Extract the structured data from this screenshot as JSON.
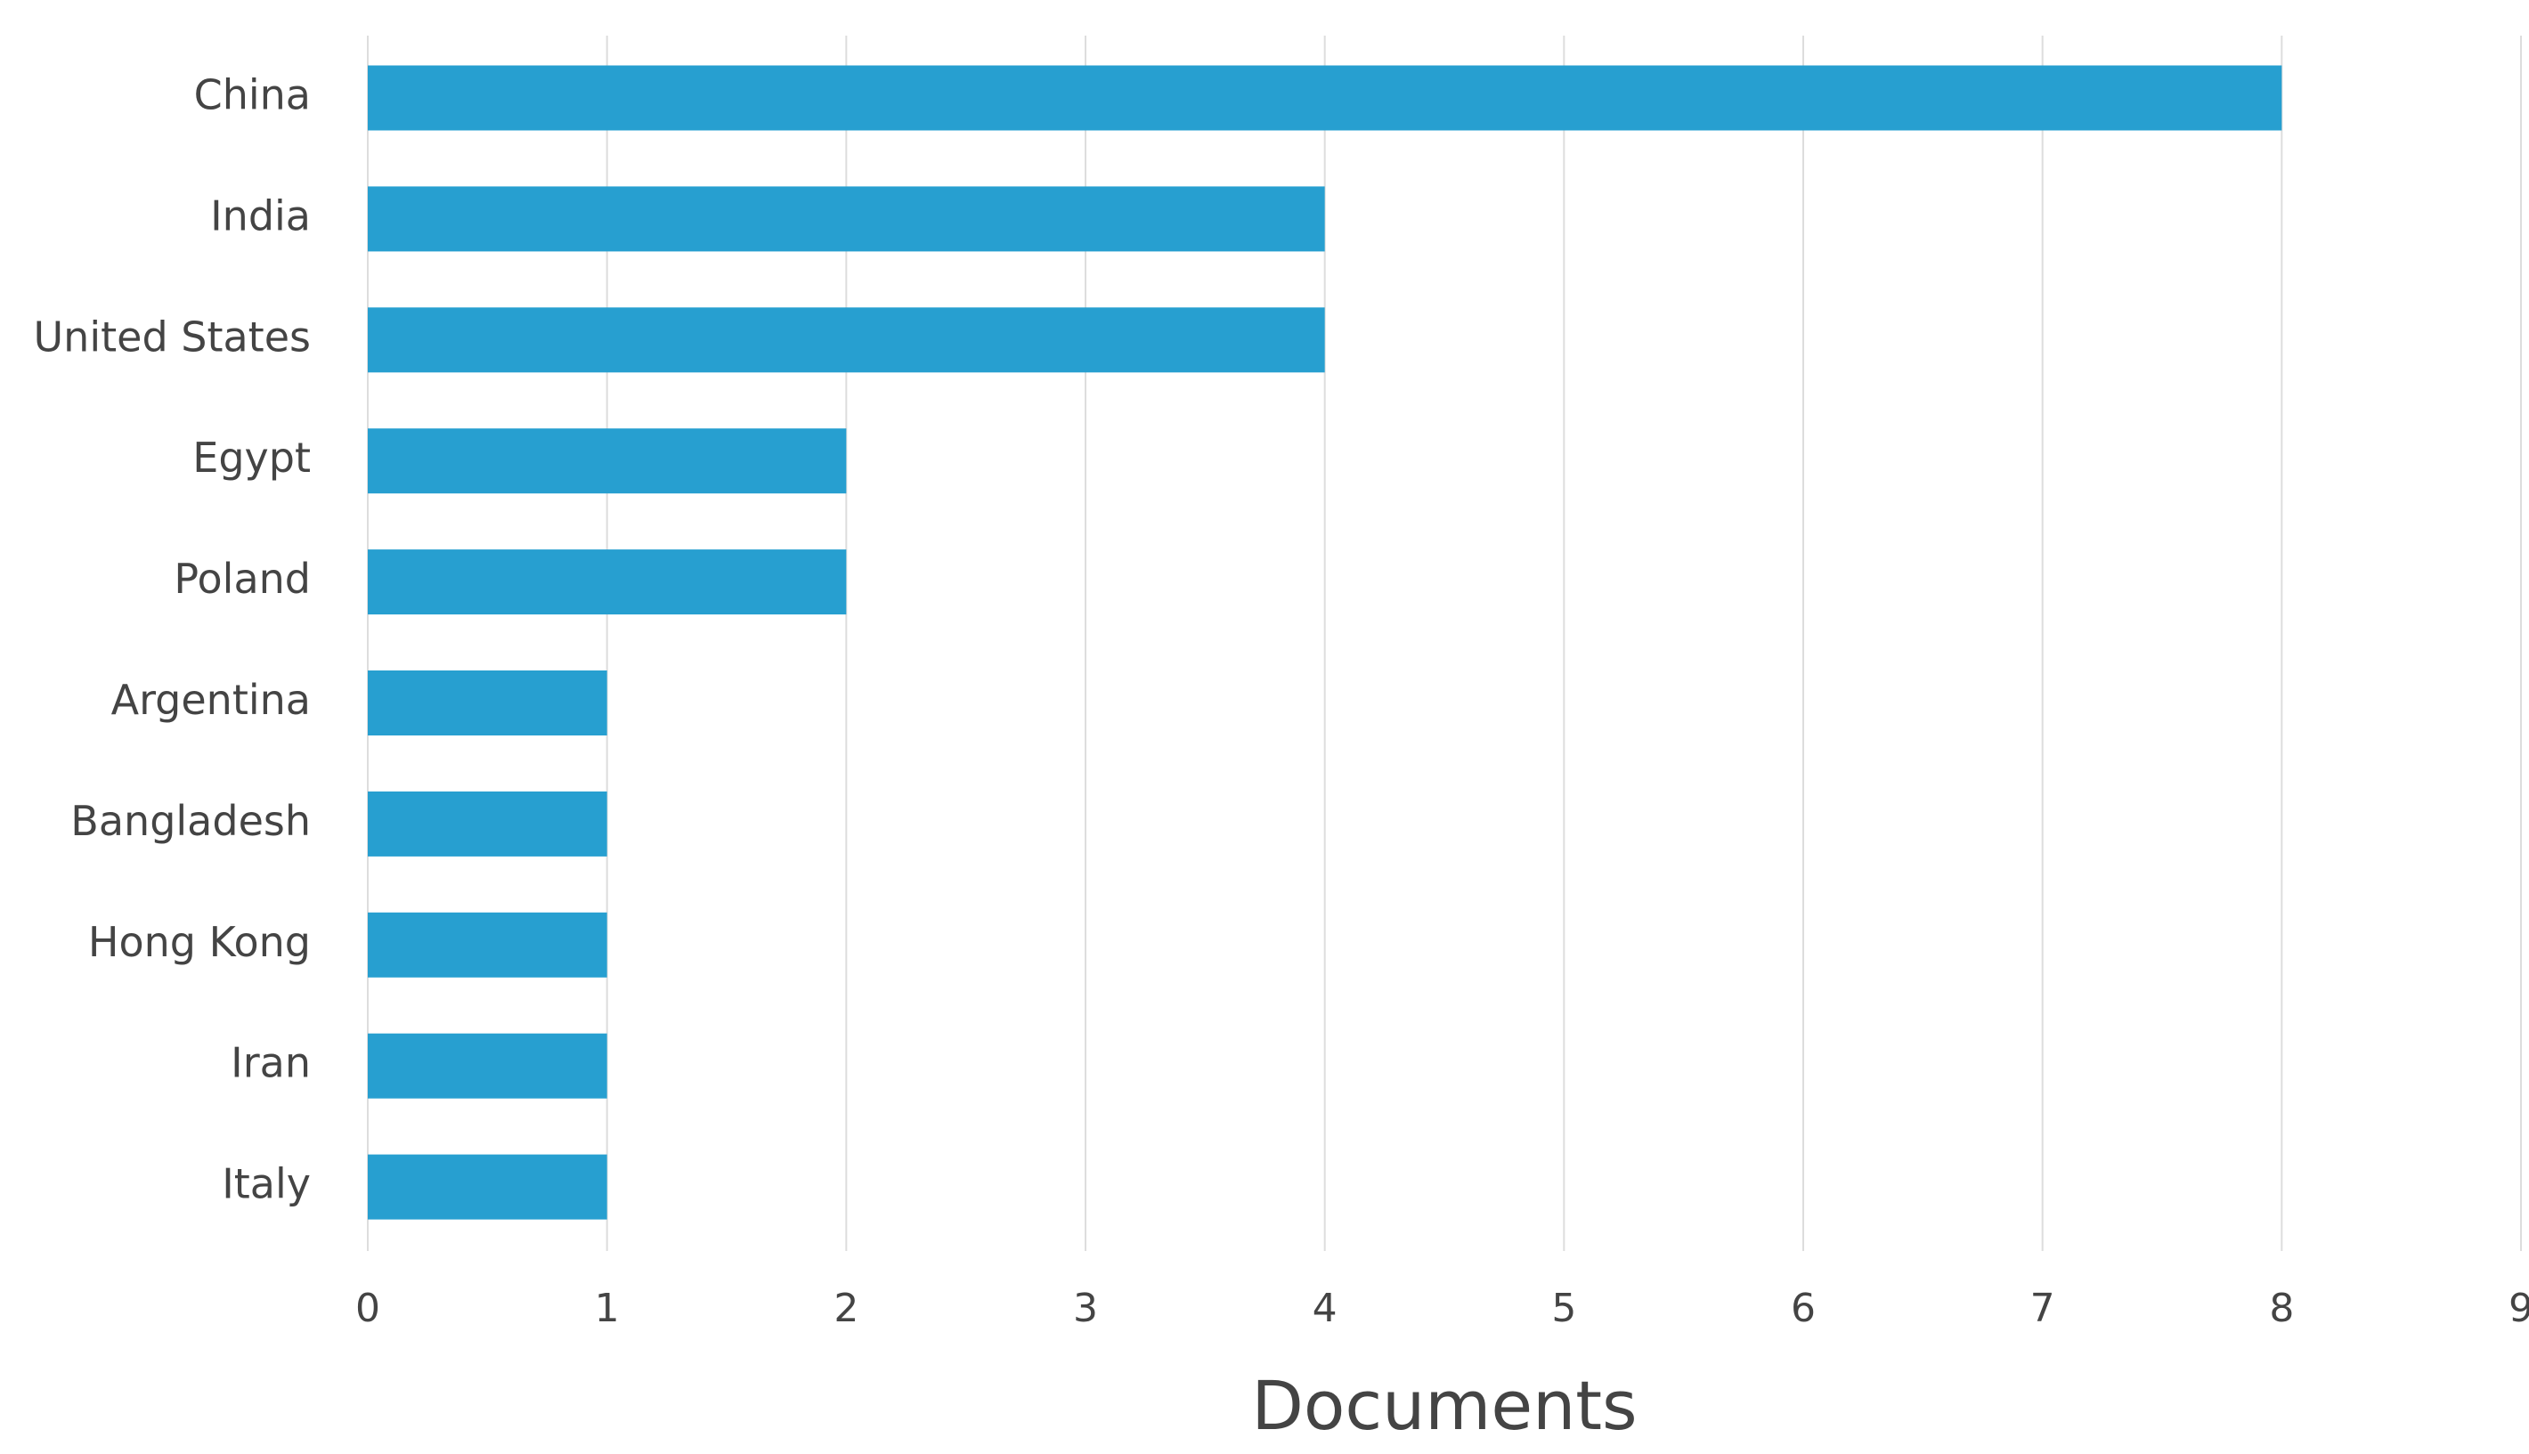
{
  "chart_data": {
    "type": "barh",
    "x_label": "Documents",
    "categories": [
      "China",
      "India",
      "United States",
      "Egypt",
      "Poland",
      "Argentina",
      "Bangladesh",
      "Hong Kong",
      "Iran",
      "Italy"
    ],
    "values": [
      8,
      4,
      4,
      2,
      2,
      1,
      1,
      1,
      1,
      1
    ],
    "color": "#279fd0",
    "xlim": [
      0,
      9
    ],
    "xticks": [
      0,
      1,
      2,
      3,
      4,
      5,
      6,
      7,
      8,
      9
    ],
    "grid": true
  }
}
